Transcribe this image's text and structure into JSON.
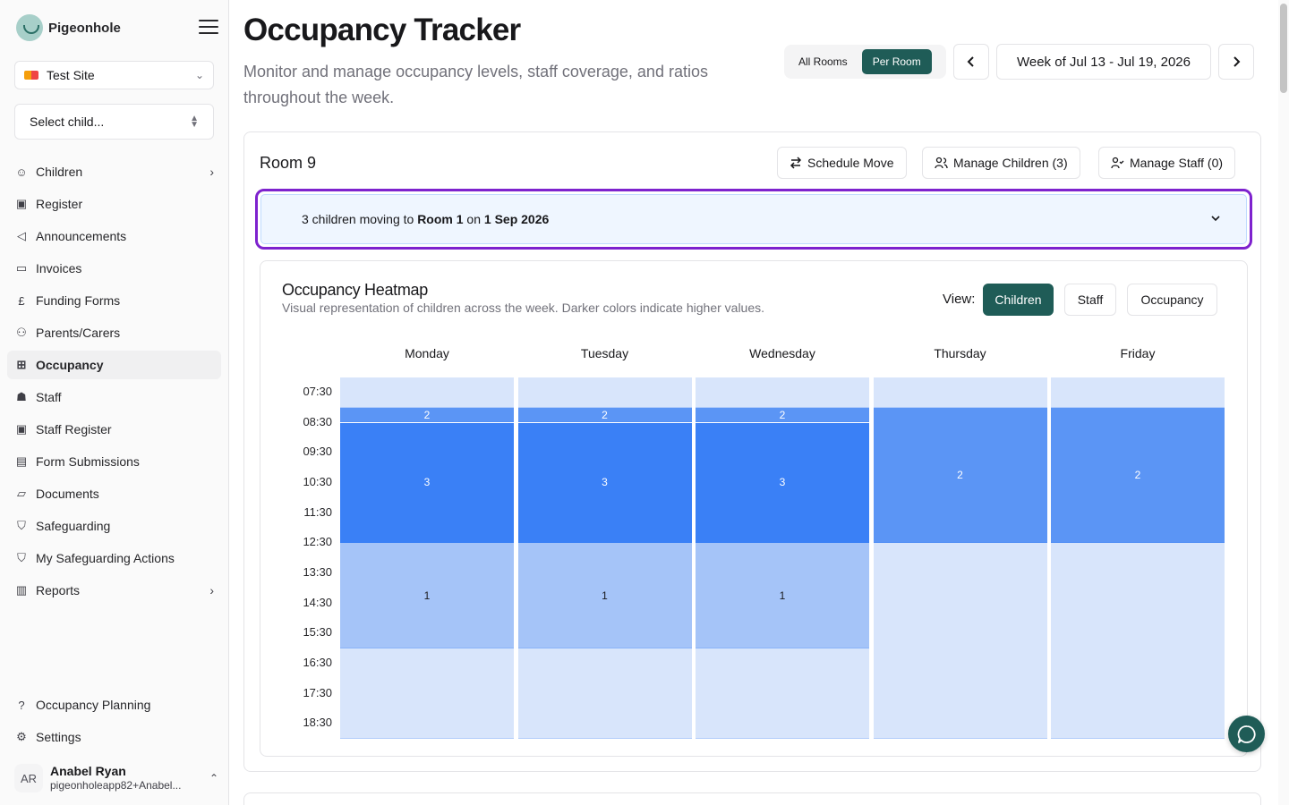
{
  "brand": {
    "name": "Pigeonhole"
  },
  "site": {
    "name": "Test Site"
  },
  "child_select": {
    "placeholder": "Select child..."
  },
  "nav": {
    "items": [
      {
        "label": "Children",
        "icon": "smile-icon",
        "has_arrow": true
      },
      {
        "label": "Register",
        "icon": "calendar-check-icon"
      },
      {
        "label": "Announcements",
        "icon": "megaphone-icon"
      },
      {
        "label": "Invoices",
        "icon": "wallet-icon"
      },
      {
        "label": "Funding Forms",
        "icon": "pound-icon"
      },
      {
        "label": "Parents/Carers",
        "icon": "link-people-icon"
      },
      {
        "label": "Occupancy",
        "icon": "grid-icon",
        "active": true
      },
      {
        "label": "Staff",
        "icon": "users-icon"
      },
      {
        "label": "Staff Register",
        "icon": "calendar-check-icon"
      },
      {
        "label": "Form Submissions",
        "icon": "file-text-icon"
      },
      {
        "label": "Documents",
        "icon": "folder-icon"
      },
      {
        "label": "Safeguarding",
        "icon": "shield-icon"
      },
      {
        "label": "My Safeguarding Actions",
        "icon": "shield-alert-icon"
      },
      {
        "label": "Reports",
        "icon": "bar-chart-icon",
        "has_arrow": true
      }
    ],
    "bottom": [
      {
        "label": "Occupancy Planning",
        "icon": "help-circle-icon"
      },
      {
        "label": "Settings",
        "icon": "gear-icon"
      }
    ]
  },
  "user": {
    "initials": "AR",
    "name": "Anabel Ryan",
    "email": "pigeonholeapp82+Anabel..."
  },
  "header": {
    "title": "Occupancy Tracker",
    "subtitle": "Monitor and manage occupancy levels, staff coverage, and ratios throughout the week.",
    "toggle": {
      "all_rooms": "All Rooms",
      "per_room": "Per Room",
      "selected": "Per Room"
    },
    "week_label": "Week of Jul 13 - Jul 19, 2026"
  },
  "room": {
    "title": "Room 9",
    "actions": {
      "schedule_move": "Schedule Move",
      "manage_children": "Manage Children (3)",
      "manage_staff": "Manage Staff (0)"
    },
    "move_banner": {
      "prefix": "3 children moving to ",
      "room": "Room 1",
      "middle": " on ",
      "date": "1 Sep 2026"
    }
  },
  "heatmap": {
    "title": "Occupancy Heatmap",
    "description": "Visual representation of children across the week. Darker colors indicate higher values.",
    "view_label": "View:",
    "views": [
      "Children",
      "Staff",
      "Occupancy"
    ],
    "selected_view": "Children",
    "days": [
      "Monday",
      "Tuesday",
      "Wednesday",
      "Thursday",
      "Friday"
    ],
    "times": [
      "07:30",
      "08:30",
      "09:30",
      "10:30",
      "11:30",
      "12:30",
      "13:30",
      "14:30",
      "15:30",
      "16:30",
      "17:30",
      "18:30"
    ],
    "colors": {
      "0": "#d8e5fb",
      "1": "#a5c4f8",
      "2": "#5b95f5",
      "3": "#3a80f6"
    },
    "schedule": [
      {
        "day": "Monday",
        "blocks": [
          {
            "from": "07:30",
            "to": "08:30",
            "value": 0
          },
          {
            "from": "08:30",
            "to": "09:00",
            "value": 2
          },
          {
            "from": "09:00",
            "to": "13:00",
            "value": 3
          },
          {
            "from": "13:00",
            "to": "16:30",
            "value": 1
          },
          {
            "from": "16:30",
            "to": "19:30",
            "value": 0
          }
        ]
      },
      {
        "day": "Tuesday",
        "blocks": [
          {
            "from": "07:30",
            "to": "08:30",
            "value": 0
          },
          {
            "from": "08:30",
            "to": "09:00",
            "value": 2
          },
          {
            "from": "09:00",
            "to": "13:00",
            "value": 3
          },
          {
            "from": "13:00",
            "to": "16:30",
            "value": 1
          },
          {
            "from": "16:30",
            "to": "19:30",
            "value": 0
          }
        ]
      },
      {
        "day": "Wednesday",
        "blocks": [
          {
            "from": "07:30",
            "to": "08:30",
            "value": 0
          },
          {
            "from": "08:30",
            "to": "09:00",
            "value": 2
          },
          {
            "from": "09:00",
            "to": "13:00",
            "value": 3
          },
          {
            "from": "13:00",
            "to": "16:30",
            "value": 1
          },
          {
            "from": "16:30",
            "to": "19:30",
            "value": 0
          }
        ]
      },
      {
        "day": "Thursday",
        "blocks": [
          {
            "from": "07:30",
            "to": "08:30",
            "value": 0
          },
          {
            "from": "08:30",
            "to": "13:00",
            "value": 2
          },
          {
            "from": "13:00",
            "to": "19:30",
            "value": 0
          }
        ]
      },
      {
        "day": "Friday",
        "blocks": [
          {
            "from": "07:30",
            "to": "08:30",
            "value": 0
          },
          {
            "from": "08:30",
            "to": "13:00",
            "value": 2
          },
          {
            "from": "13:00",
            "to": "19:30",
            "value": 0
          }
        ]
      }
    ]
  }
}
